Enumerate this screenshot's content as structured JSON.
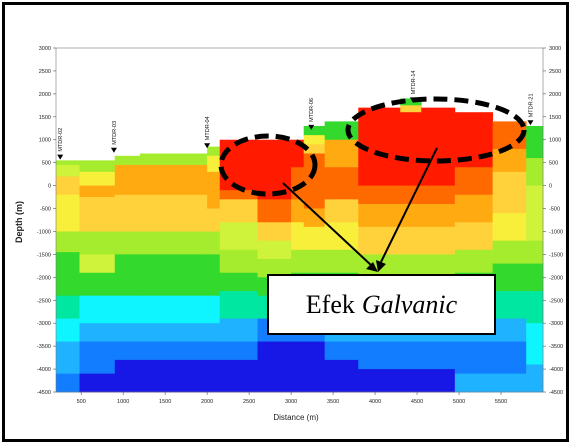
{
  "chart_data": {
    "type": "heatmap",
    "xlabel": "Distance (m)",
    "ylabel": "Depth (m)",
    "xlim": [
      200,
      6000
    ],
    "ylim": [
      -4500,
      3000
    ],
    "x_ticks": [
      "500",
      "1000",
      "1500",
      "2000",
      "2500",
      "3000",
      "3500",
      "4000",
      "4500",
      "5000",
      "5500"
    ],
    "y_ticks": [
      "3000",
      "2500",
      "2000",
      "1500",
      "1000",
      "500",
      "0",
      "-500",
      "-1000",
      "-1500",
      "-2000",
      "-2500",
      "-3000",
      "-3500",
      "-4000",
      "-4500"
    ],
    "stations": [
      {
        "name": "MTDR-02",
        "x": 250,
        "elevation": 500
      },
      {
        "name": "MTDR-03",
        "x": 890,
        "elevation": 650
      },
      {
        "name": "MTDR-04",
        "x": 2000,
        "elevation": 750
      },
      {
        "name": "MTDR-06",
        "x": 3240,
        "elevation": 1150
      },
      {
        "name": "MTDR-14",
        "x": 4450,
        "elevation": 1750
      },
      {
        "name": "MTDR-21",
        "x": 5850,
        "elevation": 1250
      }
    ],
    "resistivity_colors": {
      "very_low": "#ff1a00",
      "low": "#ff6a00",
      "low_mid": "#ffaa10",
      "mid": "#ffd23c",
      "mid_high": "#f7ef3a",
      "high_yellow": "#cff23a",
      "high_green": "#a6ec2e",
      "green": "#33d92d",
      "teal": "#00e7a2",
      "cyan": "#0ff5ff",
      "sky": "#1fb3ff",
      "blue": "#137dff",
      "deep_blue": "#1818e6"
    },
    "annotation": {
      "text_plain": "Efek",
      "text_italic": "Galvanic"
    }
  }
}
